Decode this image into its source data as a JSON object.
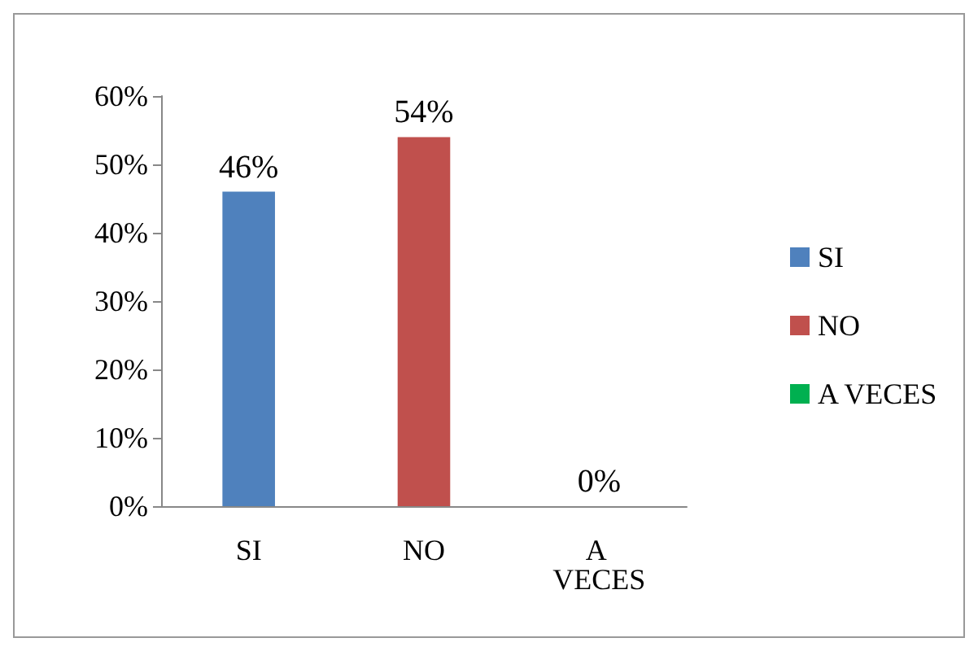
{
  "chart_data": {
    "type": "bar",
    "categories": [
      "SI",
      "NO",
      "A VECES"
    ],
    "stacked": true,
    "series": [
      {
        "name": "SI",
        "color": "#4f81bd",
        "values": [
          46,
          null,
          null
        ],
        "value_labels": [
          "46%",
          null,
          null
        ]
      },
      {
        "name": "NO",
        "color": "#c0504d",
        "values": [
          null,
          54,
          null
        ],
        "value_labels": [
          null,
          "54%",
          null
        ]
      },
      {
        "name": "A VECES",
        "color": "#00b050",
        "values": [
          null,
          null,
          0
        ],
        "value_labels": [
          null,
          null,
          "0%"
        ]
      }
    ],
    "ylim": [
      0,
      60
    ],
    "yticks": [
      {
        "value": 0,
        "label": "0%"
      },
      {
        "value": 10,
        "label": "10%"
      },
      {
        "value": 20,
        "label": "20%"
      },
      {
        "value": 30,
        "label": "30%"
      },
      {
        "value": 40,
        "label": "40%"
      },
      {
        "value": 50,
        "label": "50%"
      },
      {
        "value": 60,
        "label": "60%"
      }
    ],
    "legend": "right",
    "grid": false
  }
}
